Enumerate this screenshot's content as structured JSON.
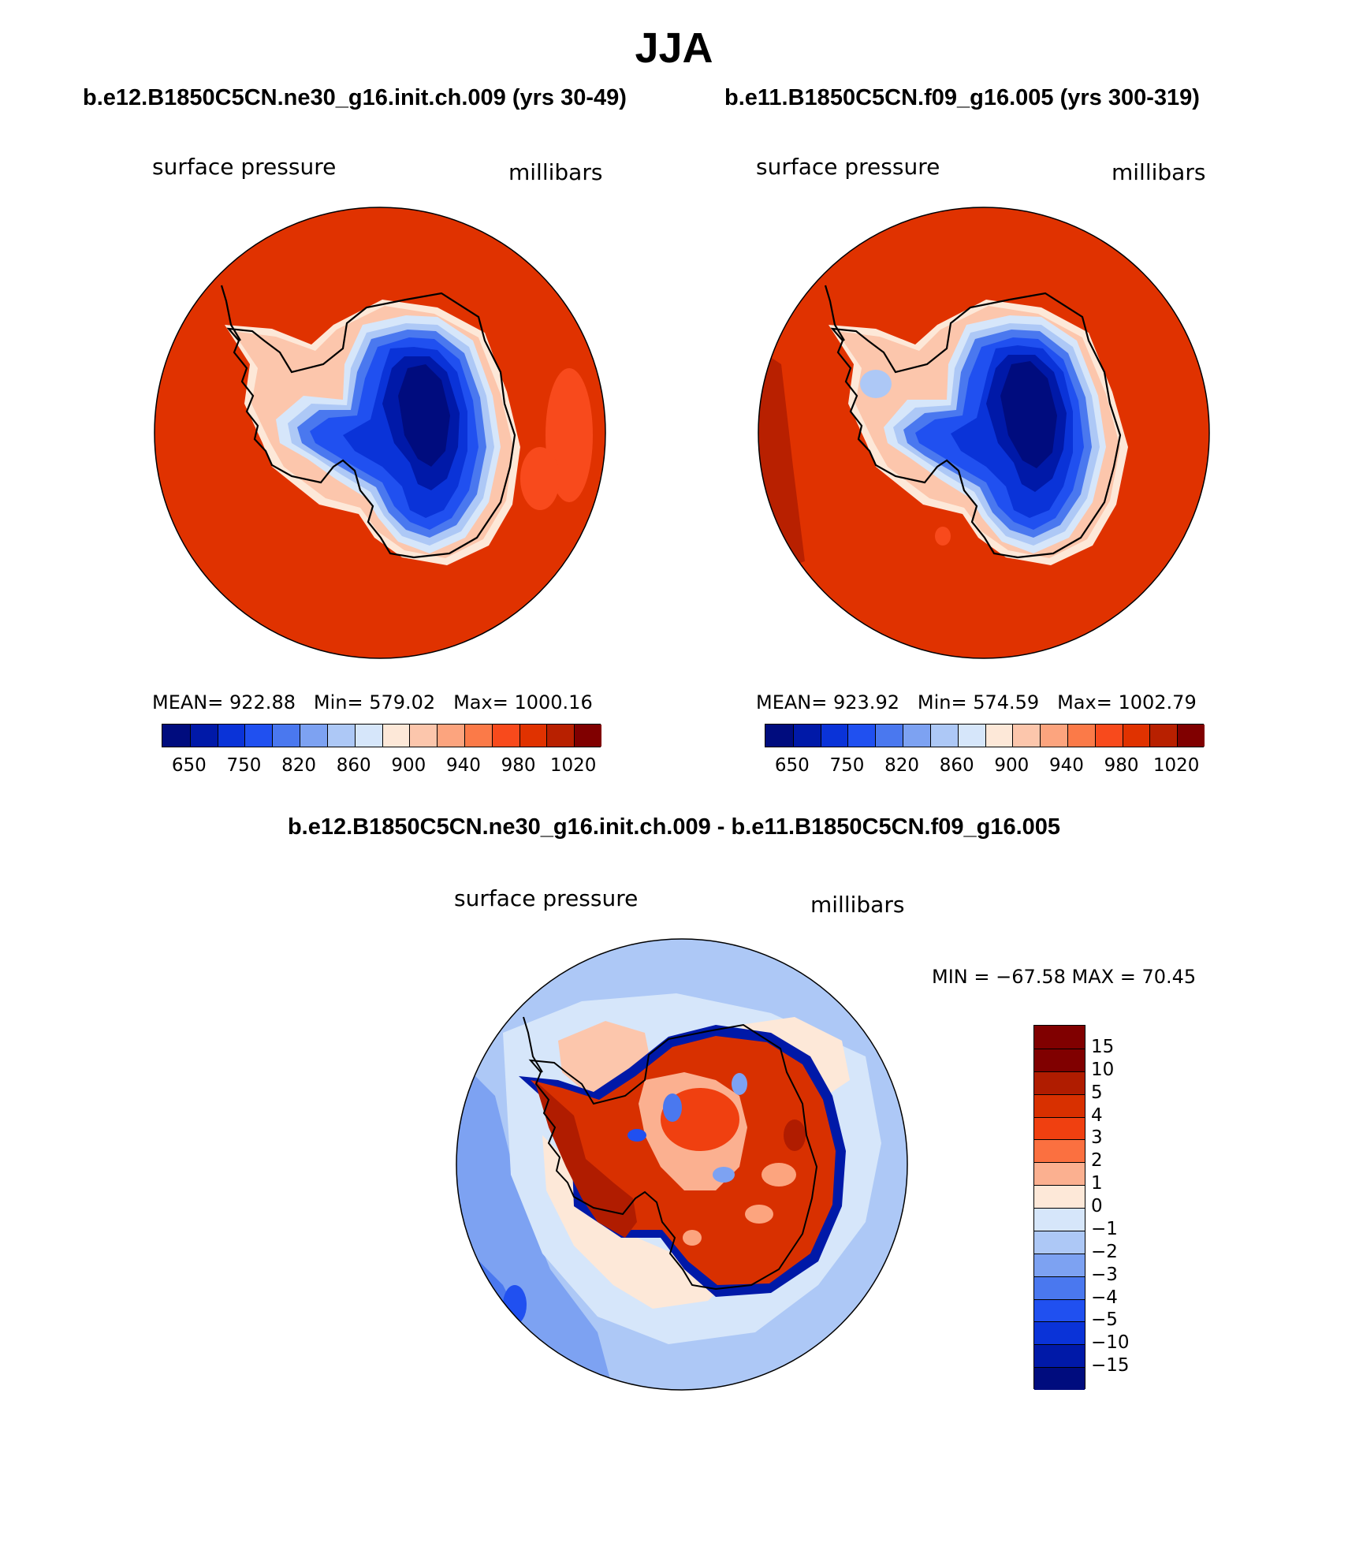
{
  "title": "JJA",
  "panels": [
    {
      "case_title": "b.e12.B1850C5CN.ne30_g16.init.ch.009 (yrs 30-49)",
      "variable": "surface pressure",
      "units": "millibars",
      "stats": {
        "mean_label": "MEAN=",
        "mean": "922.88",
        "min_label": "Min=",
        "min": "579.02",
        "max_label": "Max=",
        "max": "1000.16"
      }
    },
    {
      "case_title": "b.e11.B1850C5CN.f09_g16.005 (yrs 300-319)",
      "variable": "surface pressure",
      "units": "millibars",
      "stats": {
        "mean_label": "MEAN=",
        "mean": "923.92",
        "min_label": "Min=",
        "min": "574.59",
        "max_label": "Max=",
        "max": "1002.79"
      }
    }
  ],
  "colorbar": {
    "colors": [
      "#000c7e",
      "#0019a8",
      "#0a33d8",
      "#2050f0",
      "#4a78ef",
      "#7da2f2",
      "#adc8f6",
      "#d6e6fa",
      "#fde8d8",
      "#fcc6ac",
      "#fca47e",
      "#fb7a48",
      "#f84a1c",
      "#e03200",
      "#b82000",
      "#800000"
    ],
    "labels": [
      "650",
      "750",
      "820",
      "860",
      "900",
      "940",
      "980",
      "1020"
    ]
  },
  "diff": {
    "title": "b.e12.B1850C5CN.ne30_g16.init.ch.009 - b.e11.B1850C5CN.f09_g16.005",
    "variable": "surface pressure",
    "units": "millibars",
    "minmax": "MIN = −67.58 MAX =  70.45",
    "colorbar": {
      "colors": [
        "#800000",
        "#b01c00",
        "#d83000",
        "#f04010",
        "#fb7040",
        "#fbb090",
        "#fde8d8",
        "#d6e6fa",
        "#adc8f6",
        "#7da2f2",
        "#4a78ef",
        "#2050f0",
        "#0a33d8",
        "#0019a8",
        "#000c7e"
      ],
      "labels": [
        "15",
        "10",
        "5",
        "4",
        "3",
        "2",
        "1",
        "0",
        "−1",
        "−2",
        "−3",
        "−4",
        "−5",
        "−10",
        "−15"
      ]
    }
  }
}
